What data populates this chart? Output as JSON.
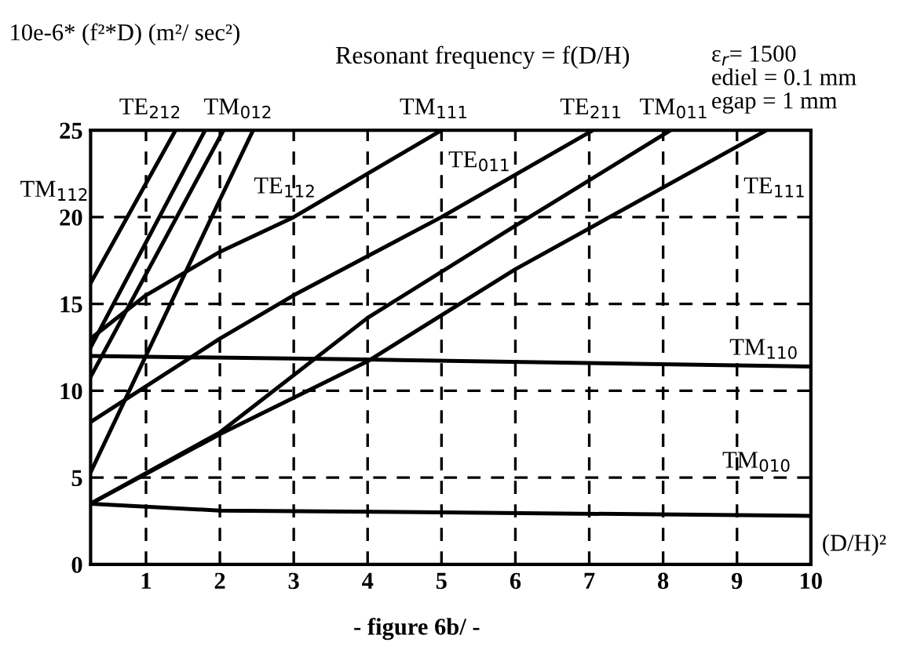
{
  "chart_data": {
    "type": "line",
    "title": "Resonant frequency = f(D/H)",
    "subtitle": "ε$_{r}$= 1500\nediel = 0.1 mm\negap = 1 mm",
    "xlabel": "(D/H)²",
    "ylabel": "10e-6* (f²*D) (m²/ sec²)",
    "xlim": [
      0.25,
      10
    ],
    "ylim": [
      0,
      25
    ],
    "xticks": [
      1,
      2,
      3,
      4,
      5,
      6,
      7,
      8,
      9,
      10
    ],
    "yticks": [
      0,
      5,
      10,
      15,
      20,
      25
    ],
    "grid": true,
    "marker": "none",
    "line_style": "solid",
    "series": [
      {
        "color": "#000000",
        "x": [
          0.25,
          2,
          5,
          10
        ],
        "values": [
          3.5,
          3.1,
          3.0,
          2.8
        ]
      },
      {
        "color": "#000000",
        "x": [
          0.25,
          4,
          10
        ],
        "values": [
          12,
          11.8,
          11.4
        ]
      },
      {
        "color": "#000000",
        "x": [
          0.25,
          2,
          4,
          6,
          9.4
        ],
        "values": [
          3.5,
          7.5,
          11.7,
          17,
          25
        ]
      },
      {
        "color": "#000000",
        "x": [
          0.25,
          2,
          4,
          6,
          8.1
        ],
        "values": [
          3.5,
          7.6,
          14.2,
          19.5,
          25
        ]
      },
      {
        "color": "#000000",
        "x": [
          0.25,
          2,
          3,
          5,
          7.05
        ],
        "values": [
          8.2,
          13,
          15.5,
          20,
          25
        ]
      },
      {
        "color": "#000000",
        "x": [
          0.25,
          1,
          2,
          3,
          5
        ],
        "values": [
          13,
          15.5,
          18,
          20,
          25
        ]
      },
      {
        "color": "#000000",
        "x": [
          0.25,
          1.4
        ],
        "values": [
          16.2,
          25
        ]
      },
      {
        "color": "#000000",
        "x": [
          0.25,
          1.8
        ],
        "values": [
          12.5,
          25
        ]
      },
      {
        "color": "#000000",
        "x": [
          0.25,
          2.05
        ],
        "values": [
          10.8,
          25
        ]
      },
      {
        "color": "#000000",
        "x": [
          0.25,
          2,
          2.45
        ],
        "values": [
          5.3,
          21,
          25
        ]
      }
    ],
    "annotations": [
      "TE$_{212}$",
      "TM$_{012}$",
      "TM$_{111}$",
      "TE$_{211}$",
      "TM$_{011}$",
      "TM$_{112}$",
      "TE$_{112}$",
      "TE$_{011}$",
      "TE$_{111}$",
      "TM$_{110}$",
      "TM$_{010}$",
      "- figure 6b/ -"
    ]
  }
}
